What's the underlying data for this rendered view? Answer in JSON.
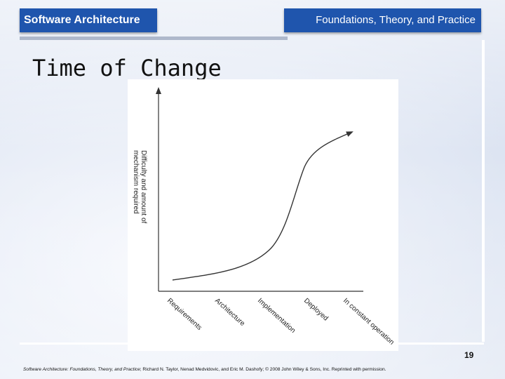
{
  "header": {
    "left_title": "Software Architecture",
    "right_title": "Foundations, Theory, and Practice"
  },
  "slide": {
    "title": "Time of Change",
    "page_number": "19"
  },
  "diagram": {
    "y_axis_label_line1": "Difficulty and amount of",
    "y_axis_label_line2": "mechanism required",
    "x_labels": [
      "Requirements",
      "Architecture",
      "Implementation",
      "Deployed",
      "In constant operation"
    ]
  },
  "footer": {
    "book_title": "Software Architecture: Foundations, Theory, and Practice",
    "credits": "; Richard N. Taylor, Nenad Medvidovic, and Eric M. Dashofy; © 2008 John Wiley & Sons, Inc. Reprinted with permission."
  }
}
